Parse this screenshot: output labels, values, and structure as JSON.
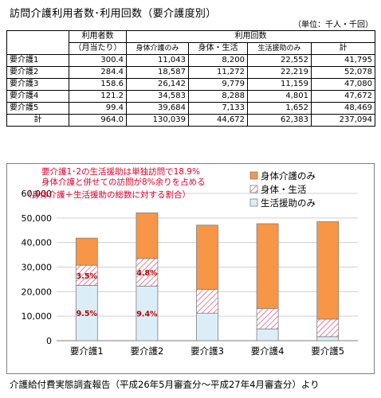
{
  "title": "訪問介護利用者数･利用回数（要介護度別）",
  "unit": "（単位：千人・千回）",
  "table": {
    "header_users_line1": "利用者数",
    "header_users_line2": "（月当たり）",
    "header_visits": "利用回数",
    "sub_headers": [
      "身体介護のみ",
      "身体・生活",
      "生活援助のみ",
      "計"
    ],
    "rows": [
      {
        "label": "要介護1",
        "users": "300.4",
        "physical": "11,043",
        "mixed": "8,200",
        "living": "22,552",
        "total": "41,795"
      },
      {
        "label": "要介護2",
        "users": "284.4",
        "physical": "18,587",
        "mixed": "11,272",
        "living": "22,219",
        "total": "52,078"
      },
      {
        "label": "要介護3",
        "users": "158.6",
        "physical": "26,142",
        "mixed": "9,779",
        "living": "11,159",
        "total": "47,080"
      },
      {
        "label": "要介護4",
        "users": "121.2",
        "physical": "34,583",
        "mixed": "8,288",
        "living": "4,801",
        "total": "47,672"
      },
      {
        "label": "要介護5",
        "users": "99.4",
        "physical": "39,684",
        "mixed": "7,133",
        "living": "1,652",
        "total": "48,469"
      }
    ],
    "total_row": {
      "label": "計",
      "users": "964.0",
      "physical": "130,039",
      "mixed": "44,672",
      "living": "62,383",
      "total": "237,094"
    }
  },
  "chart_data": {
    "type": "bar",
    "stacked": true,
    "categories": [
      "要介護1",
      "要介護2",
      "要介護3",
      "要介護4",
      "要介護5"
    ],
    "series": [
      {
        "name": "生活援助のみ",
        "values": [
          22552,
          22219,
          11159,
          4801,
          1652
        ],
        "color": "#dbeef8",
        "stroke": "#4f81bd"
      },
      {
        "name": "身体・生活",
        "values": [
          8200,
          11272,
          9779,
          8288,
          7133
        ],
        "color": "#ffffff",
        "hatch": "#e06080"
      },
      {
        "name": "身体介護のみ",
        "values": [
          11043,
          18587,
          26142,
          34583,
          39684
        ],
        "color": "#f79646"
      }
    ],
    "ylim": [
      0,
      60000
    ],
    "yticks": [
      "0",
      "10,000",
      "20,000",
      "30,000",
      "40,000",
      "50,000",
      "60,000"
    ],
    "legend_entries": [
      "身体介護のみ",
      "身体・生活",
      "生活援助のみ"
    ],
    "legend_position": "top-right",
    "annotation_lines": [
      "要介護1･2の生活援助は単独訪問で18.9%",
      "身体介護と併せての訪問が8%余りを占める",
      "（身体介護＋生活援助の総数に対する割合）"
    ],
    "annotation_color": "#e0002a",
    "bar_labels": [
      {
        "category_index": 0,
        "series_index": 0,
        "text": "9.5%"
      },
      {
        "category_index": 1,
        "series_index": 0,
        "text": "9.4%"
      },
      {
        "category_index": 0,
        "series_index": 1,
        "text": "3.5%"
      },
      {
        "category_index": 1,
        "series_index": 1,
        "text": "4.8%"
      }
    ],
    "bar_label_color": "#c00000"
  },
  "source": "介護給付費実態調査報告（平成26年5月審査分～平成27年4月審査分）より"
}
